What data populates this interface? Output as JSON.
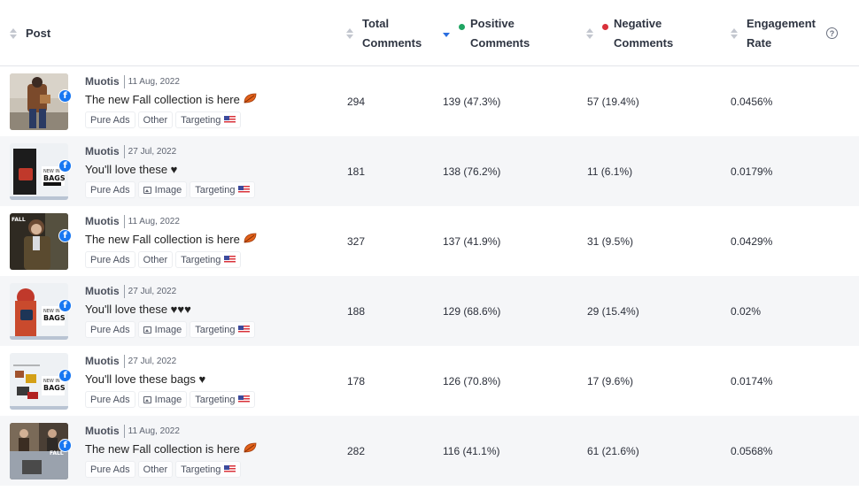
{
  "header": {
    "post": "Post",
    "total_1": "Total",
    "total_2": "Comments",
    "positive_1": "Positive",
    "positive_2": "Comments",
    "negative_1": "Negative",
    "negative_2": "Comments",
    "engagement_1": "Engagement",
    "engagement_2": "Rate",
    "help": "?"
  },
  "colors": {
    "positive_dot": "#1fa562",
    "negative_dot": "#d9313a",
    "sort_active": "#2a6ee0",
    "facebook": "#1877f2"
  },
  "network_icon": "f",
  "rows": [
    {
      "author": "Muotis",
      "date": "11 Aug, 2022",
      "caption": "The new Fall collection is here",
      "emoji": "fall-leaf",
      "tags": [
        "Pure Ads",
        "Other",
        "Targeting"
      ],
      "image_tag": false,
      "total": "294",
      "positive": "139 (47.3%)",
      "negative": "57 (19.4%)",
      "engagement": "0.0456%"
    },
    {
      "author": "Muotis",
      "date": "27 Jul, 2022",
      "caption": "You'll love these ♥",
      "emoji": "",
      "tags": [
        "Pure Ads",
        "Image",
        "Targeting"
      ],
      "image_tag": true,
      "total": "181",
      "positive": "138 (76.2%)",
      "negative": "11 (6.1%)",
      "engagement": "0.0179%"
    },
    {
      "author": "Muotis",
      "date": "11 Aug, 2022",
      "caption": "The new Fall collection is here",
      "emoji": "fall-leaf",
      "tags": [
        "Pure Ads",
        "Other",
        "Targeting"
      ],
      "image_tag": false,
      "total": "327",
      "positive": "137 (41.9%)",
      "negative": "31 (9.5%)",
      "engagement": "0.0429%"
    },
    {
      "author": "Muotis",
      "date": "27 Jul, 2022",
      "caption": "You'll love these ♥♥♥",
      "emoji": "",
      "tags": [
        "Pure Ads",
        "Image",
        "Targeting"
      ],
      "image_tag": true,
      "total": "188",
      "positive": "129 (68.6%)",
      "negative": "29 (15.4%)",
      "engagement": "0.02%"
    },
    {
      "author": "Muotis",
      "date": "27 Jul, 2022",
      "caption": "You'll love these bags ♥",
      "emoji": "",
      "tags": [
        "Pure Ads",
        "Image",
        "Targeting"
      ],
      "image_tag": true,
      "total": "178",
      "positive": "126 (70.8%)",
      "negative": "17 (9.6%)",
      "engagement": "0.0174%"
    },
    {
      "author": "Muotis",
      "date": "11 Aug, 2022",
      "caption": "The new Fall collection is here",
      "emoji": "fall-leaf",
      "tags": [
        "Pure Ads",
        "Other",
        "Targeting"
      ],
      "image_tag": false,
      "total": "282",
      "positive": "116 (41.1%)",
      "negative": "61 (21.6%)",
      "engagement": "0.0568%"
    }
  ]
}
